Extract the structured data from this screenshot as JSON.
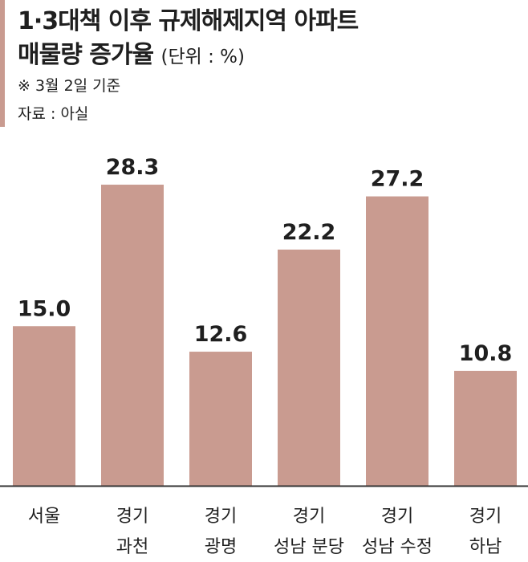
{
  "header": {
    "title_line1": "1·3대책 이후 규제해제지역 아파트",
    "title_line2": "매물량 증가율",
    "unit": "(단위 : %)",
    "note": "※  3월 2일 기준",
    "source": "자료 : 아실"
  },
  "colors": {
    "bar": "#c99b90",
    "accent": "#c99b90",
    "axis": "#333333",
    "text": "#1f1f1f"
  },
  "chart_data": {
    "type": "bar",
    "categories": [
      [
        "서울"
      ],
      [
        "경기",
        "과천"
      ],
      [
        "경기",
        "광명"
      ],
      [
        "경기",
        "성남 분당"
      ],
      [
        "경기",
        "성남 수정"
      ],
      [
        "경기",
        "하남"
      ]
    ],
    "values": [
      15.0,
      28.3,
      12.6,
      22.2,
      27.2,
      10.8
    ],
    "value_labels": [
      "15.0",
      "28.3",
      "12.6",
      "22.2",
      "27.2",
      "10.8"
    ],
    "ylim": [
      0,
      30
    ],
    "grid": false,
    "legend": "none"
  }
}
